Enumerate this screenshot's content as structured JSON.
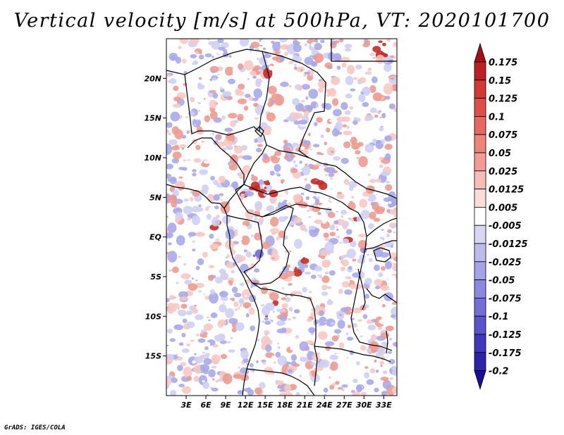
{
  "title": "Vertical velocity [m/s] at 500hPa, VT: 2020101700",
  "credit": "GrADS: IGES/COLA",
  "map": {
    "lon_range": [
      0,
      35
    ],
    "lat_range": [
      -20,
      25
    ],
    "lat_ticks": [
      {
        "lat": 20,
        "label": "20N"
      },
      {
        "lat": 15,
        "label": "15N"
      },
      {
        "lat": 10,
        "label": "10N"
      },
      {
        "lat": 5,
        "label": "5N"
      },
      {
        "lat": 0,
        "label": "EQ"
      },
      {
        "lat": -5,
        "label": "5S"
      },
      {
        "lat": -10,
        "label": "10S"
      },
      {
        "lat": -15,
        "label": "15S"
      }
    ],
    "lon_ticks": [
      {
        "lon": 3,
        "label": "3E"
      },
      {
        "lon": 6,
        "label": "6E"
      },
      {
        "lon": 9,
        "label": "9E"
      },
      {
        "lon": 12,
        "label": "12E"
      },
      {
        "lon": 15,
        "label": "15E"
      },
      {
        "lon": 18,
        "label": "18E"
      },
      {
        "lon": 21,
        "label": "21E"
      },
      {
        "lon": 24,
        "label": "24E"
      },
      {
        "lon": 27,
        "label": "27E"
      },
      {
        "lon": 30,
        "label": "30E"
      },
      {
        "lon": 33,
        "label": "33E"
      }
    ]
  },
  "colorbar": {
    "labels": [
      "0.175",
      "0.15",
      "0.125",
      "0.1",
      "0.075",
      "0.05",
      "0.025",
      "0.0125",
      "0.005",
      "-0.005",
      "-0.0125",
      "-0.025",
      "-0.05",
      "-0.075",
      "-0.1",
      "-0.125",
      "-0.175",
      "-0.2"
    ],
    "colors": [
      "#a50f15",
      "#bd1f23",
      "#d03a33",
      "#de5046",
      "#e6685e",
      "#ee8479",
      "#f39c92",
      "#f8bcb4",
      "#fbdcd6",
      "#ffffff",
      "#d7d6f3",
      "#bdbbee",
      "#a5a2e8",
      "#8c87e0",
      "#736ed8",
      "#5a53cd",
      "#4136bf",
      "#2e22ad",
      "#1a0d9a"
    ]
  },
  "field_colors": {
    "neutral": "#ffffff",
    "weak_neg": "#cfd0f3",
    "mid_neg": "#a9a8ea",
    "strong_neg": "#6f6ddb",
    "weak_pos": "#f6c9c3",
    "mid_pos": "#ee9a90",
    "strong_pos": "#c62b26"
  }
}
